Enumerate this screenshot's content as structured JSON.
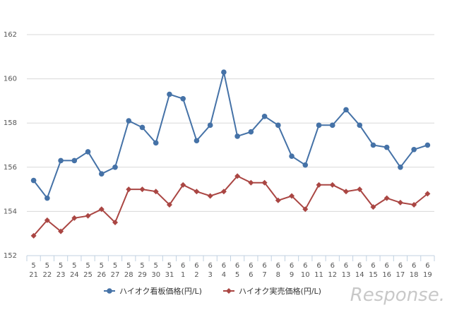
{
  "chart_data": {
    "type": "line",
    "categories": [
      [
        "5",
        "21"
      ],
      [
        "5",
        "22"
      ],
      [
        "5",
        "23"
      ],
      [
        "5",
        "24"
      ],
      [
        "5",
        "25"
      ],
      [
        "5",
        "26"
      ],
      [
        "5",
        "27"
      ],
      [
        "5",
        "28"
      ],
      [
        "5",
        "29"
      ],
      [
        "5",
        "30"
      ],
      [
        "5",
        "31"
      ],
      [
        "6",
        "1"
      ],
      [
        "6",
        "2"
      ],
      [
        "6",
        "3"
      ],
      [
        "6",
        "4"
      ],
      [
        "6",
        "5"
      ],
      [
        "6",
        "6"
      ],
      [
        "6",
        "7"
      ],
      [
        "6",
        "8"
      ],
      [
        "6",
        "9"
      ],
      [
        "6",
        "10"
      ],
      [
        "6",
        "11"
      ],
      [
        "6",
        "12"
      ],
      [
        "6",
        "13"
      ],
      [
        "6",
        "14"
      ],
      [
        "6",
        "15"
      ],
      [
        "6",
        "16"
      ],
      [
        "6",
        "17"
      ],
      [
        "6",
        "18"
      ],
      [
        "6",
        "19"
      ]
    ],
    "ylim": [
      152,
      162
    ],
    "yticks": [
      152,
      154,
      156,
      158,
      160,
      162
    ],
    "grid": true,
    "legend_position": "bottom",
    "series": [
      {
        "name": "ハイオク看板価格(円/L)",
        "color": "#4572a7",
        "marker": "circle",
        "values": [
          155.4,
          154.6,
          156.3,
          156.3,
          156.7,
          155.7,
          156.0,
          158.1,
          157.8,
          157.1,
          159.3,
          159.1,
          157.2,
          157.9,
          160.3,
          157.4,
          157.6,
          158.3,
          157.9,
          156.5,
          156.1,
          157.9,
          157.9,
          158.6,
          157.9,
          157.0,
          156.9,
          156.0,
          156.8,
          157.0
        ]
      },
      {
        "name": "ハイオク実売価格(円/L)",
        "color": "#aa4643",
        "marker": "diamond",
        "values": [
          152.9,
          153.6,
          153.1,
          153.7,
          153.8,
          154.1,
          153.5,
          155.0,
          155.0,
          154.9,
          154.3,
          155.2,
          154.9,
          154.7,
          154.9,
          155.6,
          155.3,
          155.3,
          154.5,
          154.7,
          154.1,
          155.2,
          155.2,
          154.9,
          155.0,
          154.2,
          154.6,
          154.4,
          154.3,
          154.8
        ]
      }
    ]
  },
  "watermark": "Response."
}
